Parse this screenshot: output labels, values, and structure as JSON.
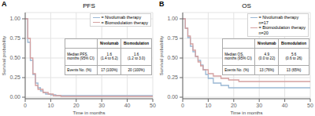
{
  "chart_data": [
    {
      "type": "step",
      "title": "PFS",
      "panel_label": "A",
      "x_label": "Time in months",
      "y_label": "Survival probability",
      "xlim": [
        0,
        50
      ],
      "ylim": [
        -0.02,
        1.08
      ],
      "xticks": [
        0,
        10,
        20,
        30,
        40,
        50
      ],
      "yticks": [
        {
          "value": 0.0,
          "label": "0.00"
        },
        0.25,
        {
          "value": 0.5,
          "label": "0.50"
        },
        0.75,
        {
          "value": 1.0,
          "label": "1.00"
        }
      ],
      "grid": true,
      "legend": "upper right",
      "series": [
        {
          "name": "= Nivolumab therapy",
          "color": "#9ab8d4",
          "x": [
            0,
            1,
            1,
            2,
            2,
            3,
            3,
            4,
            4,
            5,
            5,
            6,
            6,
            7,
            7,
            8,
            8,
            10,
            10,
            12,
            12,
            15,
            15,
            50
          ],
          "values": [
            1.0,
            1.0,
            0.7,
            0.7,
            0.47,
            0.47,
            0.29,
            0.29,
            0.18,
            0.18,
            0.12,
            0.12,
            0.08,
            0.08,
            0.06,
            0.06,
            0.04,
            0.04,
            0.03,
            0.03,
            0.02,
            0.02,
            0.02,
            0.02
          ]
        },
        {
          "name": "= Biomodulation therapy",
          "color": "#d4a0a0",
          "x": [
            0,
            1,
            1,
            2,
            2,
            3,
            3,
            4,
            4,
            5,
            5,
            7,
            7,
            9,
            9,
            11,
            11,
            14,
            14,
            50
          ],
          "values": [
            1.0,
            1.0,
            0.75,
            0.75,
            0.5,
            0.5,
            0.3,
            0.3,
            0.15,
            0.15,
            0.1,
            0.1,
            0.06,
            0.06,
            0.04,
            0.04,
            0.02,
            0.02,
            0.01,
            0.01
          ]
        }
      ],
      "table": {
        "columns": [
          "Nivolumab",
          "Biomodulation"
        ],
        "rows": [
          {
            "label": "Median PFS,\nmonths (95% CI)",
            "cells": [
              "1.6\n(1.4 to 6.2)",
              "1.6\n(1.2 to 3.0)"
            ]
          },
          {
            "label": "Events No. (%)",
            "cells": [
              "17 (100%)",
              "20 (100%)"
            ]
          }
        ]
      }
    },
    {
      "type": "step",
      "title": "OS",
      "panel_label": "B",
      "x_label": "Time in months",
      "y_label": "Survival probability",
      "xlim": [
        0,
        50
      ],
      "ylim": [
        -0.02,
        1.08
      ],
      "xticks": [
        0,
        10,
        20,
        30,
        40,
        50
      ],
      "yticks": [
        {
          "value": 0.0,
          "label": "0.00"
        },
        0.25,
        {
          "value": 0.5,
          "label": "0.50"
        },
        0.75,
        {
          "value": 1.0,
          "label": "1.00"
        }
      ],
      "grid": true,
      "legend": "upper right",
      "series": [
        {
          "name": "= Nivolumab therapy",
          "note": "n=17",
          "color": "#9ab8d4",
          "x": [
            0,
            1,
            1,
            2,
            2,
            3,
            3,
            4,
            4,
            5,
            5,
            6,
            6,
            7,
            7,
            8,
            8,
            9,
            9,
            10,
            10,
            12,
            12,
            15,
            15,
            18,
            18,
            22,
            22,
            50
          ],
          "values": [
            1.0,
            1.0,
            0.88,
            0.88,
            0.76,
            0.76,
            0.65,
            0.65,
            0.58,
            0.58,
            0.52,
            0.52,
            0.47,
            0.47,
            0.41,
            0.41,
            0.35,
            0.35,
            0.29,
            0.29,
            0.24,
            0.24,
            0.18,
            0.18,
            0.15,
            0.15,
            0.12,
            0.12,
            0.12,
            0.12
          ]
        },
        {
          "name": "= Biomodulation therapy",
          "note": "n=20",
          "color": "#d4a0a0",
          "x": [
            0,
            1,
            1,
            2,
            2,
            3,
            3,
            4,
            4,
            5,
            5,
            6,
            6,
            7,
            7,
            8,
            8,
            10,
            10,
            12,
            12,
            15,
            15,
            18,
            18,
            22,
            22,
            26,
            26,
            35,
            35,
            42,
            42,
            50
          ],
          "values": [
            1.0,
            1.0,
            0.88,
            0.88,
            0.78,
            0.78,
            0.68,
            0.68,
            0.6,
            0.6,
            0.52,
            0.52,
            0.45,
            0.45,
            0.4,
            0.4,
            0.35,
            0.35,
            0.3,
            0.3,
            0.27,
            0.27,
            0.24,
            0.24,
            0.22,
            0.22,
            0.2,
            0.2,
            0.2,
            0.2,
            0.2,
            0.2,
            0.2,
            0.2
          ]
        }
      ],
      "table": {
        "columns": [
          "Nivolumab",
          "Biomodulation"
        ],
        "rows": [
          {
            "label": "Median OS,\nmonths (95% CI)",
            "cells": [
              "4.9\n(0.0 to 22)",
              "5.6\n(0.6 to 26)"
            ]
          },
          {
            "label": "Events No. (%)",
            "cells": [
              "13 (76%)",
              "13 (65%)"
            ]
          }
        ]
      }
    }
  ]
}
